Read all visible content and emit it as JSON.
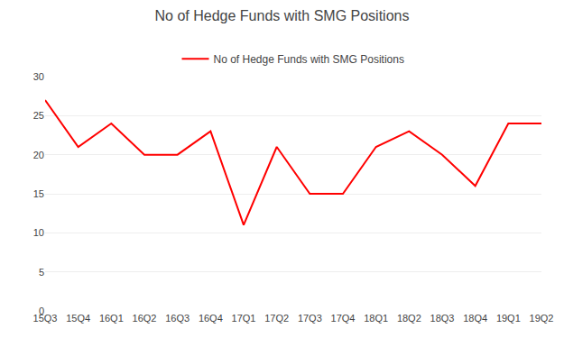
{
  "chart_data": {
    "type": "line",
    "title": "No of Hedge Funds with SMG Positions",
    "categories": [
      "15Q3",
      "15Q4",
      "16Q1",
      "16Q2",
      "16Q3",
      "16Q4",
      "17Q1",
      "17Q2",
      "17Q3",
      "17Q4",
      "18Q1",
      "18Q2",
      "18Q3",
      "18Q4",
      "19Q1",
      "19Q2"
    ],
    "series": [
      {
        "name": "No of Hedge Funds with SMG Positions",
        "color": "#ff0000",
        "values": [
          27,
          21,
          24,
          20,
          20,
          23,
          11,
          21,
          15,
          15,
          21,
          23,
          20,
          16,
          24,
          24
        ]
      }
    ],
    "ylim": [
      0,
      30
    ],
    "yticks": [
      0,
      5,
      10,
      15,
      20,
      25,
      30
    ],
    "grid": true,
    "legend": "top"
  }
}
